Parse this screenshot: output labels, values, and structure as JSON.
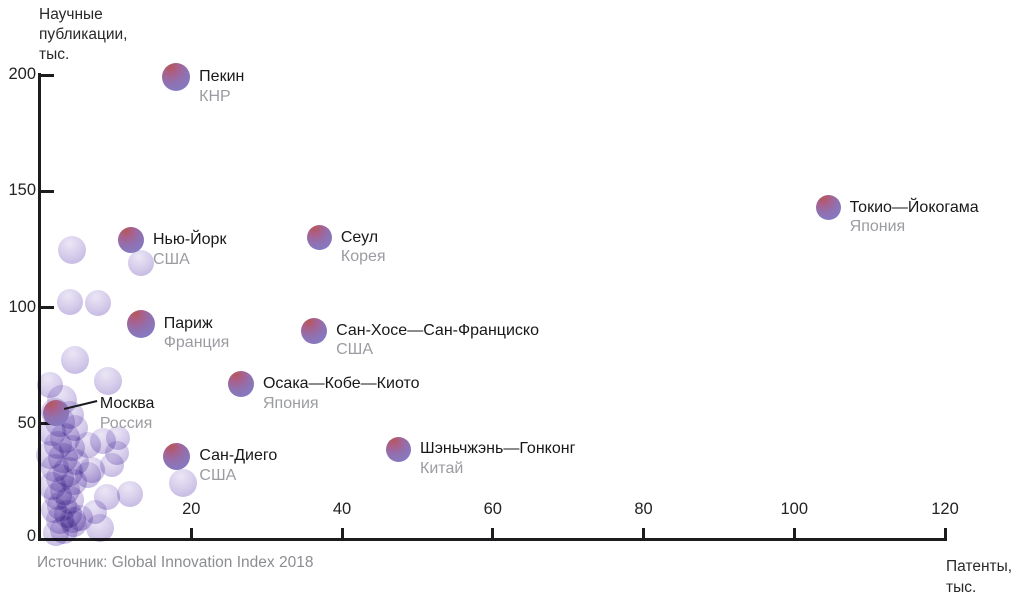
{
  "axes": {
    "y_title_lines": [
      "Научные",
      "публикации,",
      "тыс."
    ],
    "x_title_lines": [
      "Патенты,",
      "тыс."
    ],
    "origin_label": "0"
  },
  "source_note": "Источник: Global Innovation Index 2018",
  "colors": {
    "background": "#ffffff",
    "axis": "#1c1c1e",
    "tick_label": "#232325",
    "city_label": "#18181a",
    "country_label": "#9b9ca1",
    "source_text": "#8b8d92",
    "bubble_gradient_red": "#b4585a",
    "bubble_gradient_purple": "#8678c0",
    "bubble_light": "#cdc2e6"
  },
  "chart_data": {
    "type": "scatter",
    "title": "",
    "xlabel": "Патенты, тыс.",
    "ylabel": "Научные публикации, тыс.",
    "source": "Источник: Global Innovation Index 2018",
    "xlim": [
      0,
      120
    ],
    "ylim": [
      0,
      200
    ],
    "xticks": [
      20,
      40,
      60,
      80,
      100,
      120
    ],
    "yticks": [
      0,
      50,
      100,
      150,
      200
    ],
    "grid": false,
    "legend": "none",
    "cities": [
      {
        "city": "Пекин",
        "country": "КНР",
        "x": 18,
        "y": 199,
        "r": 14
      },
      {
        "city": "Токио—Йокогама",
        "country": "Япония",
        "x": 104.5,
        "y": 143,
        "r": 12.5
      },
      {
        "city": "Нью-Йорк",
        "country": "США",
        "x": 12,
        "y": 129,
        "r": 13
      },
      {
        "city": "Сеул",
        "country": "Корея",
        "x": 37,
        "y": 130,
        "r": 12.5
      },
      {
        "city": "Париж",
        "country": "Франция",
        "x": 13.3,
        "y": 93,
        "r": 14
      },
      {
        "city": "Сан-Хосе—Сан-Франциско",
        "country": "США",
        "x": 36.3,
        "y": 90,
        "r": 13
      },
      {
        "city": "Осака—Кобе—Киото",
        "country": "Япония",
        "x": 26.6,
        "y": 67,
        "r": 13
      },
      {
        "city": "Москва",
        "country": "Россия",
        "x": 2.1,
        "y": 54.5,
        "r": 13,
        "callout": true
      },
      {
        "city": "Сан-Диего",
        "country": "США",
        "x": 18.1,
        "y": 36,
        "r": 13.5
      },
      {
        "city": "Шэньчжэнь—Гонконг",
        "country": "Китай",
        "x": 47.5,
        "y": 39,
        "r": 12.5
      }
    ],
    "unlabeled_points": [
      [
        4.2,
        124.7,
        14
      ],
      [
        13.3,
        119.1,
        13
      ],
      [
        3.9,
        102.4,
        13
      ],
      [
        7.6,
        101.9,
        13
      ],
      [
        4.6,
        77.4,
        14
      ],
      [
        1.3,
        66.7,
        13
      ],
      [
        9.0,
        68.4,
        14
      ],
      [
        8.3,
        42.6,
        13
      ],
      [
        10.3,
        43.9,
        12
      ],
      [
        10.1,
        37.4,
        12
      ],
      [
        6.8,
        30.1,
        13
      ],
      [
        9.5,
        32.3,
        12
      ],
      [
        11.9,
        19.8,
        13
      ],
      [
        8.8,
        18.5,
        13
      ],
      [
        7.2,
        12.0,
        12
      ],
      [
        4.3,
        8.6,
        13
      ],
      [
        7.9,
        5.2,
        14
      ],
      [
        18.9,
        24.5,
        14
      ],
      [
        6.3,
        40.9,
        13
      ],
      [
        6.3,
        28.0,
        13
      ],
      [
        2.9,
        60.2,
        15
      ],
      [
        1.9,
        55.1,
        14
      ],
      [
        3.9,
        53.8,
        14
      ],
      [
        2.6,
        50.8,
        15
      ],
      [
        4.6,
        48.2,
        13
      ],
      [
        1.5,
        46.5,
        14
      ],
      [
        3.3,
        43.9,
        15
      ],
      [
        2.3,
        40.9,
        14
      ],
      [
        4.2,
        39.6,
        13
      ],
      [
        1.3,
        36.6,
        14
      ],
      [
        3.0,
        35.3,
        15
      ],
      [
        4.7,
        33.5,
        13
      ],
      [
        1.9,
        31.0,
        14
      ],
      [
        3.6,
        29.2,
        15
      ],
      [
        2.6,
        26.7,
        14
      ],
      [
        4.4,
        24.9,
        13
      ],
      [
        1.5,
        23.2,
        14
      ],
      [
        3.3,
        21.5,
        15
      ],
      [
        2.3,
        18.9,
        14
      ],
      [
        3.9,
        17.2,
        14
      ],
      [
        2.9,
        14.6,
        15
      ],
      [
        1.8,
        12.9,
        13
      ],
      [
        3.6,
        11.2,
        14
      ],
      [
        2.6,
        8.6,
        14
      ],
      [
        4.4,
        6.9,
        13
      ],
      [
        3.1,
        4.3,
        14
      ],
      [
        2.1,
        3.0,
        13
      ],
      [
        5.2,
        9.5,
        13
      ]
    ]
  }
}
